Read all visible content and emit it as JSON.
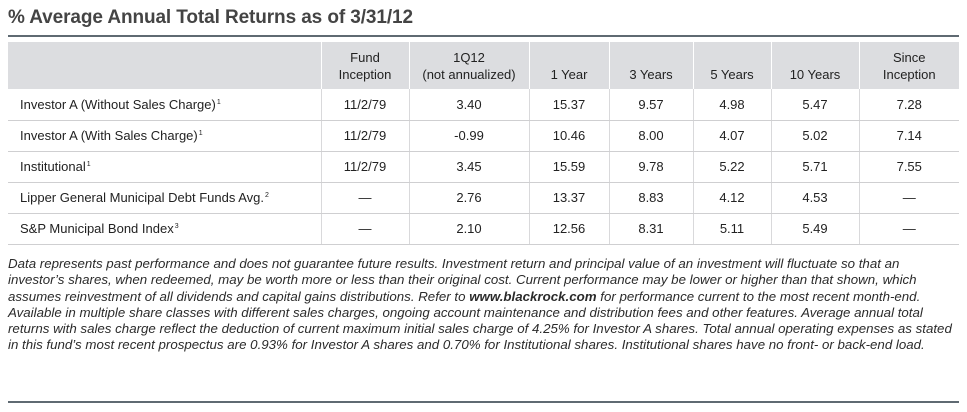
{
  "title": "% Average Annual Total Returns as of 3/31/12",
  "table": {
    "headers": [
      {
        "line1": "",
        "line2": ""
      },
      {
        "line1": "Fund",
        "line2": "Inception"
      },
      {
        "line1": "1Q12",
        "line2": "(not annualized)"
      },
      {
        "line1": "",
        "line2": "1 Year"
      },
      {
        "line1": "",
        "line2": "3 Years"
      },
      {
        "line1": "",
        "line2": "5 Years"
      },
      {
        "line1": "",
        "line2": "10 Years"
      },
      {
        "line1": "Since",
        "line2": "Inception"
      }
    ],
    "rows": [
      {
        "name": "Investor A (Without Sales Charge)",
        "note": "1",
        "cells": [
          "11/2/79",
          "3.40",
          "15.37",
          "9.57",
          "4.98",
          "5.47",
          "7.28"
        ]
      },
      {
        "name": "Investor A (With Sales Charge)",
        "note": "1",
        "cells": [
          "11/2/79",
          "-0.99",
          "10.46",
          "8.00",
          "4.07",
          "5.02",
          "7.14"
        ]
      },
      {
        "name": "Institutional",
        "note": "1",
        "cells": [
          "11/2/79",
          "3.45",
          "15.59",
          "9.78",
          "5.22",
          "5.71",
          "7.55"
        ]
      },
      {
        "name": "Lipper General Municipal Debt Funds Avg.",
        "note": "2",
        "cells": [
          "—",
          "2.76",
          "13.37",
          "8.83",
          "4.12",
          "4.53",
          "—"
        ]
      },
      {
        "name": "S&P Municipal Bond Index",
        "note": "3",
        "cells": [
          "—",
          "2.10",
          "12.56",
          "8.31",
          "5.11",
          "5.49",
          "—"
        ]
      }
    ]
  },
  "disclaimer": {
    "part1": "Data represents past performance and does not guarantee future results. Investment return and principal value of an investment will fluctuate so that an investor’s shares, when redeemed, may be worth more or less than their original cost. Current performance may be lower or higher than that shown, which assumes reinvestment of all dividends and capital gains distributions. Refer to ",
    "link": "www.blackrock.com",
    "part2": " for performance current to the most recent month-end. Available in multiple share classes with different sales charges, ongoing account maintenance and distribution fees and other features. Average annual total returns with sales charge reflect the deduction of current maximum initial sales charge of 4.25% for Investor A shares. Total annual operating expenses as stated in this fund’s most recent prospectus are 0.93% for Investor A shares and 0.70% for Institutional shares. Institutional shares have no front- or back-end load."
  }
}
